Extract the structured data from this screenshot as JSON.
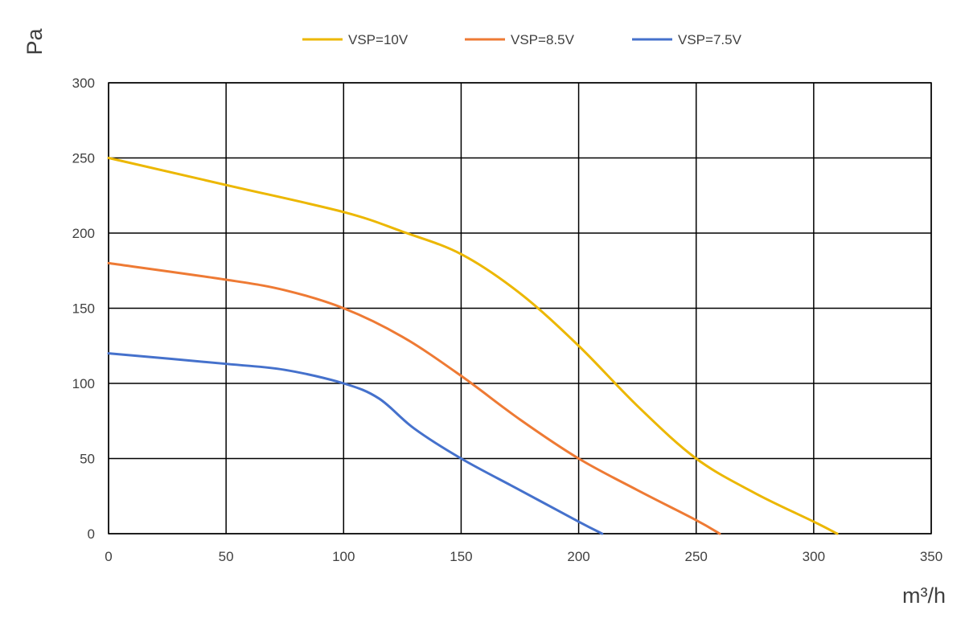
{
  "chart_data": {
    "type": "line",
    "title": "",
    "xlabel": "m³/h",
    "ylabel": "Pa",
    "xlim": [
      0,
      350
    ],
    "ylim": [
      0,
      300
    ],
    "x_ticks": [
      0,
      50,
      100,
      150,
      200,
      250,
      300,
      350
    ],
    "y_ticks": [
      0,
      50,
      100,
      150,
      200,
      250,
      300
    ],
    "grid": true,
    "legend_position": "top",
    "series": [
      {
        "name": "VSP=10V",
        "color": "#ECB700",
        "points": [
          [
            0,
            250
          ],
          [
            50,
            232
          ],
          [
            100,
            214
          ],
          [
            125,
            201
          ],
          [
            150,
            186
          ],
          [
            175,
            160
          ],
          [
            200,
            125
          ],
          [
            225,
            85
          ],
          [
            250,
            50
          ],
          [
            275,
            27
          ],
          [
            300,
            8
          ],
          [
            310,
            0
          ]
        ]
      },
      {
        "name": "VSP=8.5V",
        "color": "#EE7A34",
        "points": [
          [
            0,
            180
          ],
          [
            50,
            169
          ],
          [
            75,
            162
          ],
          [
            100,
            150
          ],
          [
            125,
            131
          ],
          [
            150,
            105
          ],
          [
            175,
            76
          ],
          [
            200,
            50
          ],
          [
            225,
            29
          ],
          [
            250,
            9
          ],
          [
            260,
            0
          ]
        ]
      },
      {
        "name": "VSP=7.5V",
        "color": "#4571CC",
        "points": [
          [
            0,
            120
          ],
          [
            50,
            113
          ],
          [
            75,
            109
          ],
          [
            100,
            100
          ],
          [
            115,
            90
          ],
          [
            130,
            70
          ],
          [
            150,
            50
          ],
          [
            175,
            29
          ],
          [
            200,
            8
          ],
          [
            210,
            0
          ]
        ]
      }
    ]
  }
}
